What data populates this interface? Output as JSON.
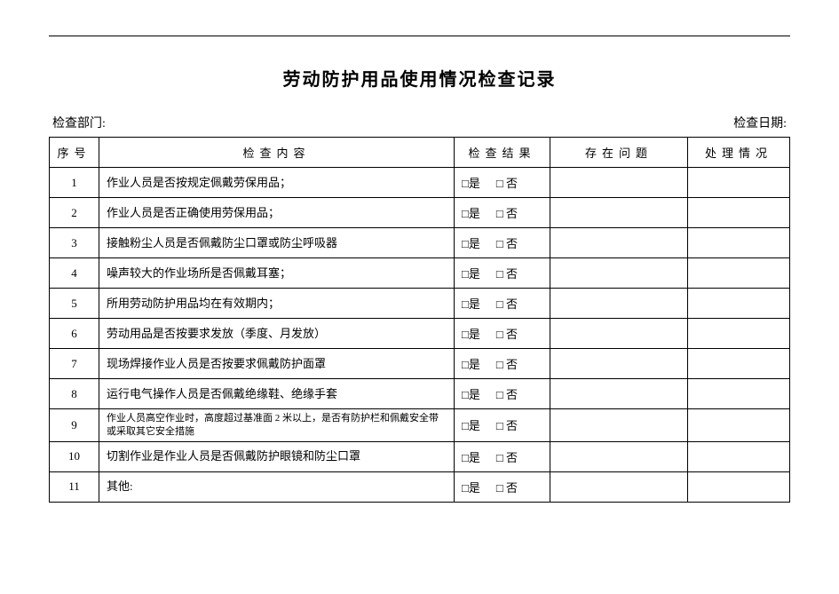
{
  "title": "劳动防护用品使用情况检查记录",
  "meta": {
    "dept_label": "检查部门:",
    "date_label": "检查日期:"
  },
  "headers": {
    "seq": "序号",
    "content": "检查内容",
    "result": "检查结果",
    "problem": "存在问题",
    "action": "处理情况"
  },
  "result_yes": "□是",
  "result_no": "□ 否",
  "rows": [
    {
      "seq": "1",
      "content": "作业人员是否按规定佩戴劳保用品；",
      "small": false
    },
    {
      "seq": "2",
      "content": "作业人员是否正确使用劳保用品；",
      "small": false
    },
    {
      "seq": "3",
      "content": "接触粉尘人员是否佩戴防尘口罩或防尘呼吸器",
      "small": false
    },
    {
      "seq": "4",
      "content": "噪声较大的作业场所是否佩戴耳塞；",
      "small": false
    },
    {
      "seq": "5",
      "content": "所用劳动防护用品均在有效期内；",
      "small": false
    },
    {
      "seq": "6",
      "content": "劳动用品是否按要求发放（季度、月发放）",
      "small": false
    },
    {
      "seq": "7",
      "content": "现场焊接作业人员是否按要求佩戴防护面罩",
      "small": false
    },
    {
      "seq": "8",
      "content": "运行电气操作人员是否佩戴绝缘鞋、绝缘手套",
      "small": false
    },
    {
      "seq": "9",
      "content": "作业人员高空作业时，高度超过基准面 2 米以上，是否有防护栏和佩戴安全带或采取其它安全措施",
      "small": true
    },
    {
      "seq": "10",
      "content": "切割作业是作业人员是否佩戴防护眼镜和防尘口罩",
      "small": false
    },
    {
      "seq": "11",
      "content": "其他:",
      "small": false
    }
  ]
}
